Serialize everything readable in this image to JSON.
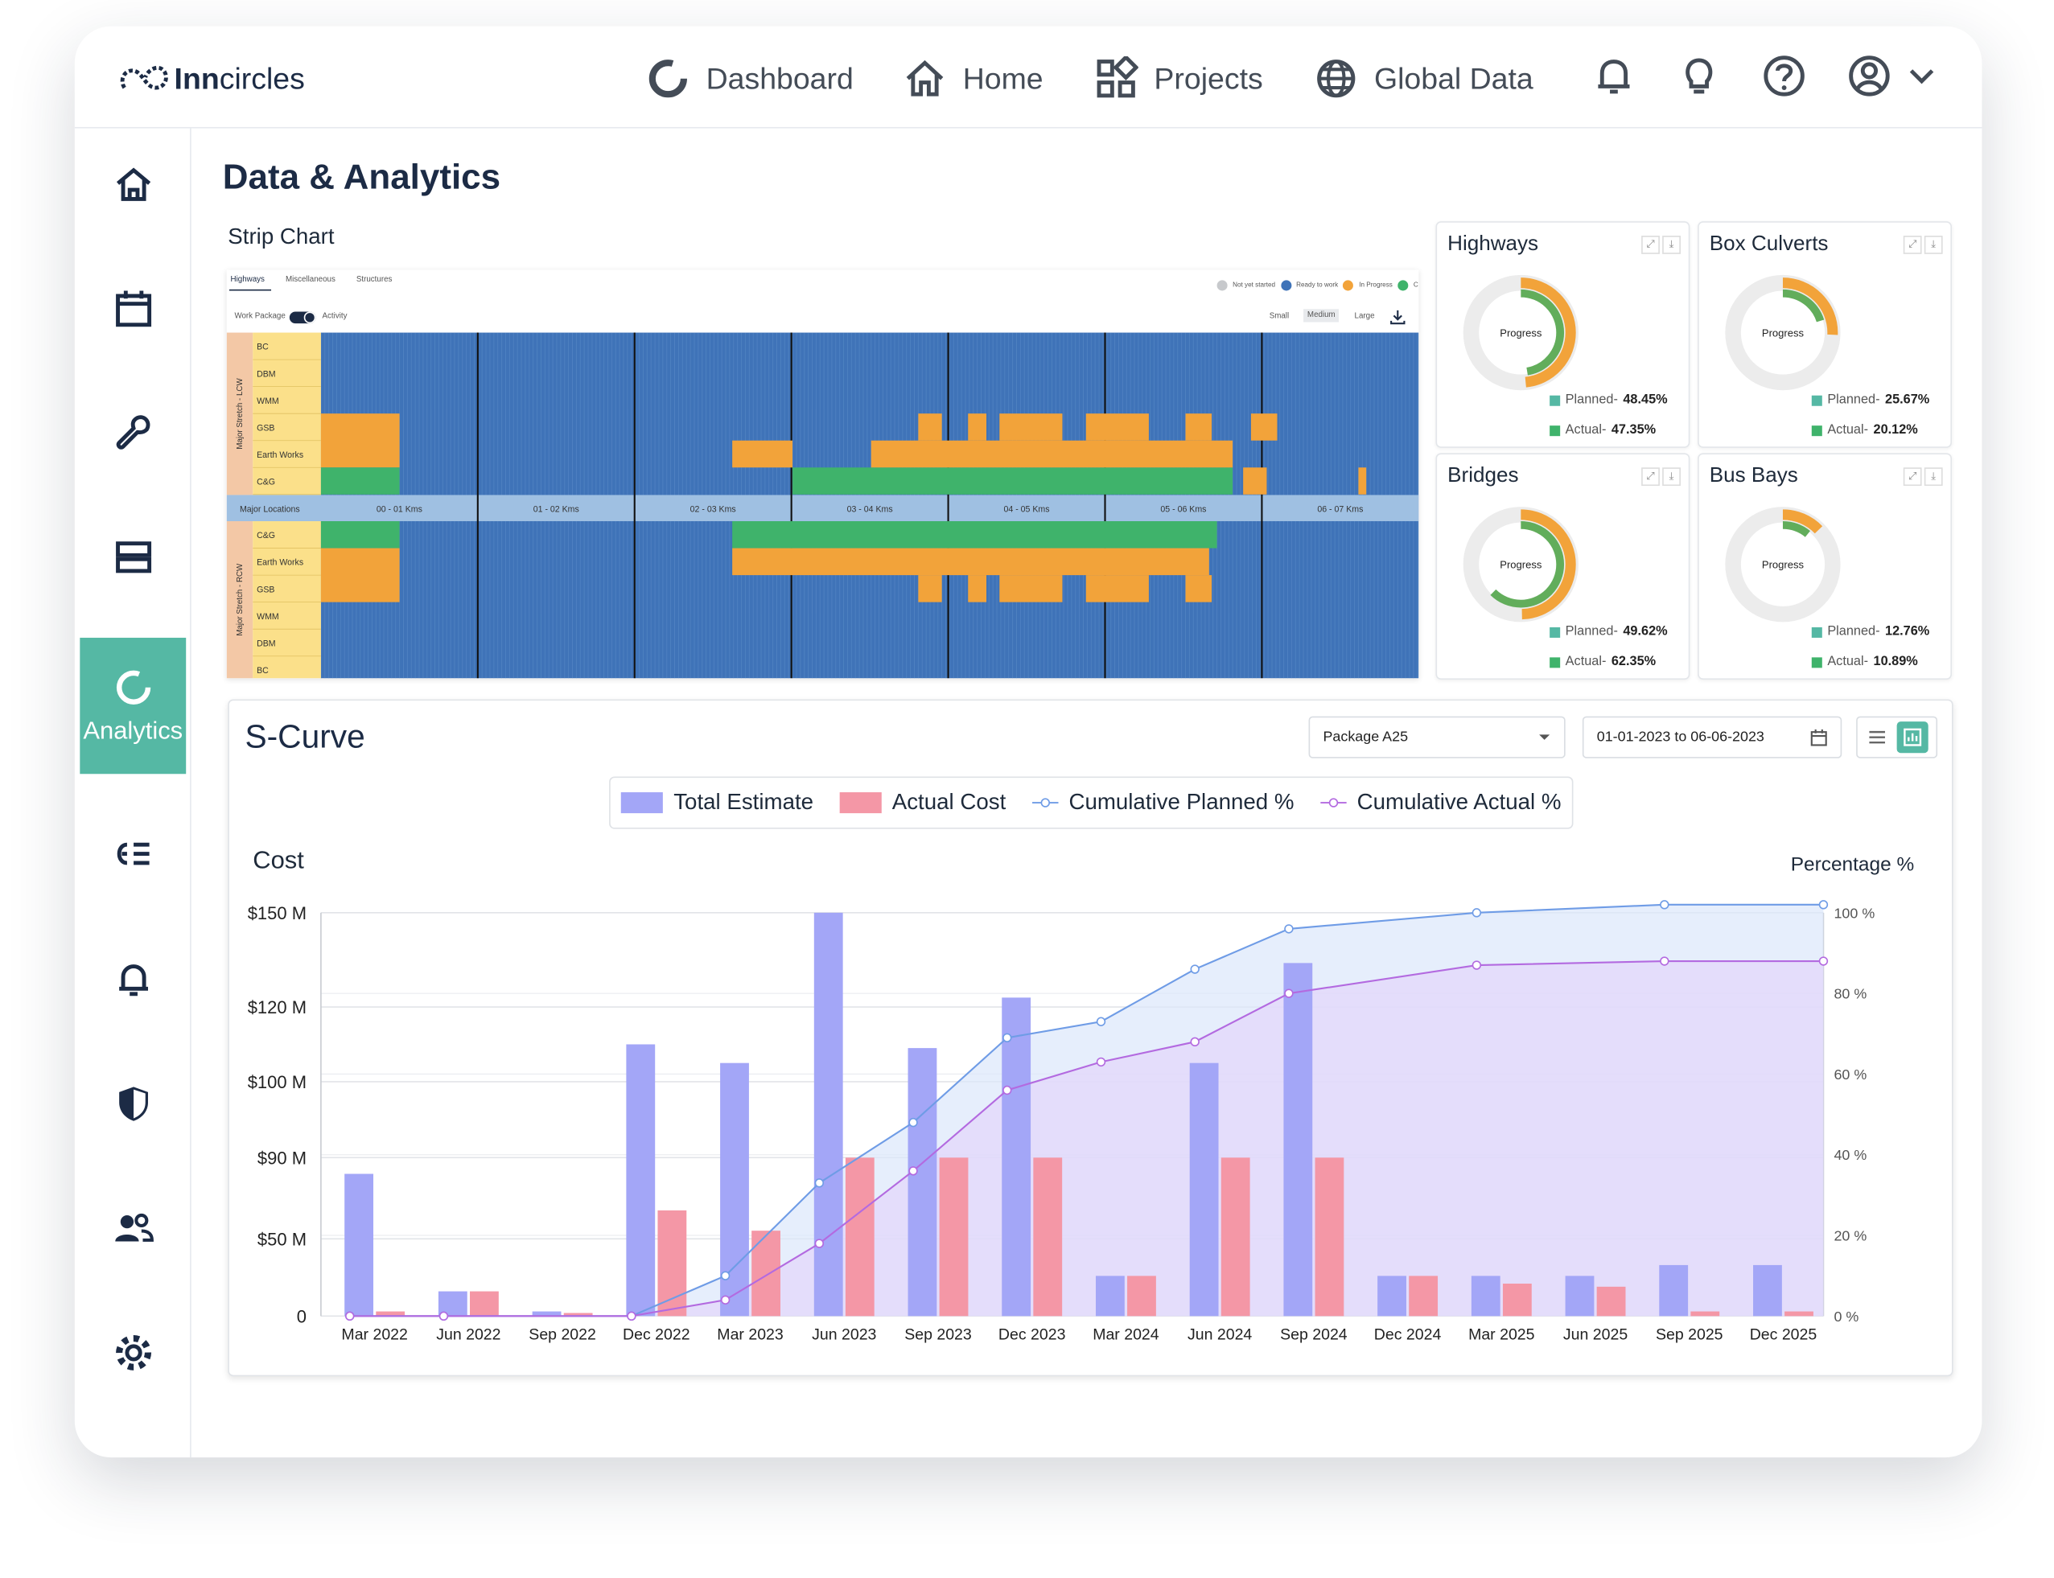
{
  "brand": {
    "name_bold": "Inn",
    "name_rest": "circles"
  },
  "nav": {
    "items": [
      {
        "label": "Dashboard",
        "icon": "dashboard-ring-icon"
      },
      {
        "label": "Home",
        "icon": "home-icon"
      },
      {
        "label": "Projects",
        "icon": "projects-grid-icon"
      },
      {
        "label": "Global Data",
        "icon": "globe-icon"
      }
    ]
  },
  "sidebar": {
    "active_label": "Analytics"
  },
  "page": {
    "title": "Data & Analytics",
    "strip_title": "Strip Chart"
  },
  "strip": {
    "tabs": [
      "Highways",
      "Miscellaneous",
      "Structures"
    ],
    "legend": [
      "Not yet started",
      "Ready to work",
      "In Progress",
      "C"
    ],
    "toggle_left": "Work Package",
    "toggle_right": "Activity",
    "sizes": [
      "Small",
      "Medium",
      "Large"
    ],
    "group_top": "Major Stretch - LCW",
    "group_bottom": "Major Stretch - RCW",
    "rows_top": [
      "BC",
      "DBM",
      "WMM",
      "GSB",
      "Earth Works",
      "C&G"
    ],
    "rows_bottom": [
      "C&G",
      "Earth Works",
      "GSB",
      "WMM",
      "DBM",
      "BC"
    ],
    "locations_label": "Major Locations",
    "locations": [
      "00 - 01 Kms",
      "01 - 02 Kms",
      "02 - 03 Kms",
      "03 - 04 Kms",
      "04 - 05 Kms",
      "05 - 06 Kms",
      "06 - 07 Kms"
    ]
  },
  "cards": [
    {
      "title": "Highways",
      "center": "Progress",
      "planned_label": "Planned-",
      "planned": "48.45%",
      "actual_label": "Actual-",
      "actual": "47.35%",
      "planned_frac": 0.4845,
      "actual_frac": 0.4735
    },
    {
      "title": "Box Culverts",
      "center": "Progress",
      "planned_label": "Planned-",
      "planned": "25.67%",
      "actual_label": "Actual-",
      "actual": "20.12%",
      "planned_frac": 0.2567,
      "actual_frac": 0.2012
    },
    {
      "title": "Bridges",
      "center": "Progress",
      "planned_label": "Planned-",
      "planned": "49.62%",
      "actual_label": "Actual-",
      "actual": "62.35%",
      "planned_frac": 0.4962,
      "actual_frac": 0.6235
    },
    {
      "title": "Bus Bays",
      "center": "Progress",
      "planned_label": "Planned-",
      "planned": "12.76%",
      "actual_label": "Actual-",
      "actual": "10.89%",
      "planned_frac": 0.1276,
      "actual_frac": 0.1089
    }
  ],
  "scurve": {
    "title": "S-Curve",
    "package": "Package A25",
    "date_range": "01-01-2023 to 06-06-2023"
  },
  "colors": {
    "teal": "#55b8a4",
    "navy": "#1c2b45",
    "orange": "#f2a33a",
    "green": "#3fb36b",
    "blue": "#3f73b8",
    "bar_estimate": "#a3a6f7",
    "bar_actual": "#f497a6",
    "line_planned": "#6f9ce6",
    "line_actual": "#b36ae0"
  },
  "chart_data": {
    "type": "bar",
    "title": "S-Curve",
    "ylabel": "Cost",
    "y2label": "Percentage %",
    "y_ticks": [
      "0",
      "$50 M",
      "$90 M",
      "$100 M",
      "$120 M",
      "$150 M"
    ],
    "y2_ticks": [
      "0 %",
      "20 %",
      "40 %",
      "60 %",
      "80 %",
      "100 %"
    ],
    "categories": [
      "Mar 2022",
      "Jun 2022",
      "Sep 2022",
      "Dec 2022",
      "Mar 2023",
      "Jun 2023",
      "Sep 2023",
      "Dec 2023",
      "Mar 2024",
      "Jun 2024",
      "Sep 2024",
      "Dec 2024",
      "Mar 2025",
      "Jun 2025",
      "Sep 2025",
      "Dec 2025"
    ],
    "series": [
      {
        "name": "Total Estimate",
        "kind": "bar",
        "axis": "left",
        "values": [
          82,
          16,
          3,
          110,
          105,
          150,
          109,
          123,
          26,
          105,
          134,
          26,
          26,
          26,
          33,
          33
        ]
      },
      {
        "name": "Actual Cost",
        "kind": "bar",
        "axis": "left",
        "values": [
          3,
          16,
          2,
          64,
          54,
          90,
          90,
          90,
          26,
          90,
          90,
          26,
          21,
          19,
          3,
          3
        ]
      },
      {
        "name": "Cumulative Planned %",
        "kind": "line",
        "axis": "right",
        "points": [
          [
            0,
            0
          ],
          [
            1,
            0
          ],
          [
            3,
            0
          ],
          [
            4,
            10
          ],
          [
            5,
            33
          ],
          [
            6,
            48
          ],
          [
            7,
            69
          ],
          [
            8,
            73
          ],
          [
            9,
            86
          ],
          [
            10,
            96
          ],
          [
            12,
            100
          ],
          [
            14,
            102
          ],
          [
            16,
            102
          ]
        ]
      },
      {
        "name": "Cumulative Actual %",
        "kind": "line",
        "axis": "right",
        "points": [
          [
            0,
            0
          ],
          [
            1,
            0
          ],
          [
            3,
            0
          ],
          [
            4,
            4
          ],
          [
            5,
            18
          ],
          [
            6,
            36
          ],
          [
            7,
            56
          ],
          [
            8,
            63
          ],
          [
            9,
            68
          ],
          [
            10,
            80
          ],
          [
            12,
            87
          ],
          [
            14,
            88
          ],
          [
            16,
            88
          ]
        ]
      }
    ],
    "ylim_pct": [
      0,
      100
    ]
  }
}
